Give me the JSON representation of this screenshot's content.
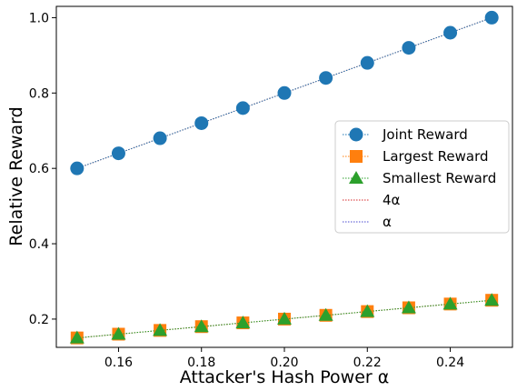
{
  "chart_data": {
    "type": "line",
    "xlabel": "Attacker's Hash Power α",
    "ylabel": "Relative Reward",
    "xlim": [
      0.145,
      0.255
    ],
    "ylim": [
      0.125,
      1.03
    ],
    "xticks": [
      "0.16",
      "0.18",
      "0.20",
      "0.22",
      "0.24"
    ],
    "xtick_values": [
      0.16,
      0.18,
      0.2,
      0.22,
      0.24
    ],
    "yticks": [
      "0.2",
      "0.4",
      "0.6",
      "0.8",
      "1.0"
    ],
    "ytick_values": [
      0.2,
      0.4,
      0.6,
      0.8,
      1.0
    ],
    "grid": false,
    "legend_position": "center-right",
    "x": [
      0.15,
      0.16,
      0.17,
      0.18,
      0.19,
      0.2,
      0.21,
      0.22,
      0.23,
      0.24,
      0.25
    ],
    "series": [
      {
        "name": "Joint Reward",
        "marker": "circle",
        "color": "#1f77b4",
        "line": "dotted",
        "values": [
          0.6,
          0.64,
          0.68,
          0.72,
          0.76,
          0.8,
          0.84,
          0.88,
          0.92,
          0.96,
          1.0
        ]
      },
      {
        "name": "Largest Reward",
        "marker": "square",
        "color": "#ff7f0e",
        "line": "dotted",
        "values": [
          0.15,
          0.16,
          0.17,
          0.18,
          0.19,
          0.2,
          0.21,
          0.22,
          0.23,
          0.24,
          0.25
        ]
      },
      {
        "name": "Smallest Reward",
        "marker": "triangle",
        "color": "#2ca02c",
        "line": "dotted",
        "values": [
          0.15,
          0.16,
          0.17,
          0.18,
          0.19,
          0.2,
          0.21,
          0.22,
          0.23,
          0.24,
          0.25
        ]
      },
      {
        "name": "4α",
        "marker": "none",
        "color": "#d62728",
        "line": "dotted",
        "values": [
          0.6,
          0.64,
          0.68,
          0.72,
          0.76,
          0.8,
          0.84,
          0.88,
          0.92,
          0.96,
          1.0
        ]
      },
      {
        "name": "α",
        "marker": "none",
        "color": "#4a4ad0",
        "line": "dotted",
        "values": [
          0.15,
          0.16,
          0.17,
          0.18,
          0.19,
          0.2,
          0.21,
          0.22,
          0.23,
          0.24,
          0.25
        ]
      }
    ]
  }
}
